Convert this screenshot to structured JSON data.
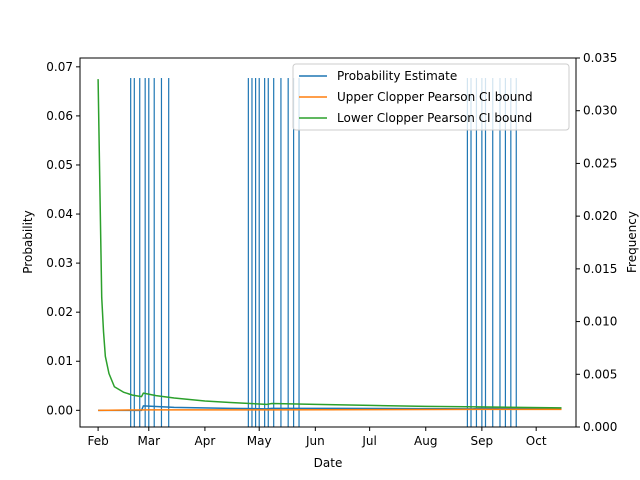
{
  "chart_data": {
    "type": "line",
    "xlabel": "Date",
    "ylabel": "Probability",
    "y2label": "Frequency",
    "xlim": [
      "2021-01-22",
      "2021-10-23"
    ],
    "ylim": [
      -0.0034,
      0.0718
    ],
    "y2lim": [
      0.0,
      0.035
    ],
    "x_ticks": [
      {
        "date": "2021-02-01",
        "label": "Feb"
      },
      {
        "date": "2021-03-01",
        "label": "Mar"
      },
      {
        "date": "2021-04-01",
        "label": "Apr"
      },
      {
        "date": "2021-05-01",
        "label": "May"
      },
      {
        "date": "2021-06-01",
        "label": "Jun"
      },
      {
        "date": "2021-07-01",
        "label": "Jul"
      },
      {
        "date": "2021-08-01",
        "label": "Aug"
      },
      {
        "date": "2021-09-01",
        "label": "Sep"
      },
      {
        "date": "2021-10-01",
        "label": "Oct"
      }
    ],
    "y_ticks": [
      "0.00",
      "0.01",
      "0.02",
      "0.03",
      "0.04",
      "0.05",
      "0.06",
      "0.07"
    ],
    "y2_ticks": [
      "0.000",
      "0.005",
      "0.010",
      "0.015",
      "0.020",
      "0.025",
      "0.030",
      "0.035"
    ],
    "legend_position": "upper right",
    "series": [
      {
        "name": "Probability Estimate",
        "color": "#1f77b4",
        "points": [
          [
            "2021-02-01",
            0.0
          ],
          [
            "2021-02-25",
            0.0
          ],
          [
            "2021-02-26",
            0.0009
          ],
          [
            "2021-03-15",
            0.0006
          ],
          [
            "2021-04-15",
            0.0004
          ],
          [
            "2021-05-05",
            0.0003
          ],
          [
            "2021-05-08",
            0.0004
          ],
          [
            "2021-06-15",
            0.0004
          ],
          [
            "2021-08-27",
            0.0003
          ],
          [
            "2021-08-30",
            0.0004
          ],
          [
            "2021-10-15",
            0.0004
          ]
        ]
      },
      {
        "name": "Upper Clopper Pearson CI bound",
        "color": "#ff7f0e",
        "points": [
          [
            "2021-02-01",
            0.0
          ],
          [
            "2021-03-01",
            0.0001
          ],
          [
            "2021-05-08",
            0.0001
          ],
          [
            "2021-08-30",
            0.0002
          ],
          [
            "2021-10-15",
            0.0002
          ]
        ]
      },
      {
        "name": "Lower Clopper Pearson CI bound",
        "color": "#2ca02c",
        "points": [
          [
            "2021-02-01",
            0.0675
          ],
          [
            "2021-02-02",
            0.045
          ],
          [
            "2021-02-03",
            0.023
          ],
          [
            "2021-02-04",
            0.016
          ],
          [
            "2021-02-05",
            0.011
          ],
          [
            "2021-02-07",
            0.0075
          ],
          [
            "2021-02-10",
            0.0048
          ],
          [
            "2021-02-15",
            0.0037
          ],
          [
            "2021-02-20",
            0.0031
          ],
          [
            "2021-02-25",
            0.0028
          ],
          [
            "2021-02-26",
            0.0035
          ],
          [
            "2021-03-05",
            0.003
          ],
          [
            "2021-03-15",
            0.0025
          ],
          [
            "2021-04-01",
            0.0019
          ],
          [
            "2021-04-15",
            0.0016
          ],
          [
            "2021-05-05",
            0.0012
          ],
          [
            "2021-05-08",
            0.0014
          ],
          [
            "2021-06-01",
            0.0012
          ],
          [
            "2021-07-01",
            0.001
          ],
          [
            "2021-08-01",
            0.0008
          ],
          [
            "2021-08-30",
            0.0007
          ],
          [
            "2021-10-15",
            0.0005
          ]
        ]
      }
    ],
    "frequency_bars": {
      "color": "#1f77b4",
      "height": 0.0331,
      "dates": [
        "2021-02-19",
        "2021-02-21",
        "2021-02-24",
        "2021-02-27",
        "2021-03-01",
        "2021-03-04",
        "2021-03-08",
        "2021-03-12",
        "2021-04-25",
        "2021-04-27",
        "2021-04-29",
        "2021-05-01",
        "2021-05-04",
        "2021-05-06",
        "2021-05-09",
        "2021-05-13",
        "2021-05-17",
        "2021-05-20",
        "2021-05-23",
        "2021-08-24",
        "2021-08-26",
        "2021-08-29",
        "2021-09-01",
        "2021-09-03",
        "2021-09-07",
        "2021-09-11",
        "2021-09-14",
        "2021-09-17",
        "2021-09-20"
      ]
    }
  }
}
